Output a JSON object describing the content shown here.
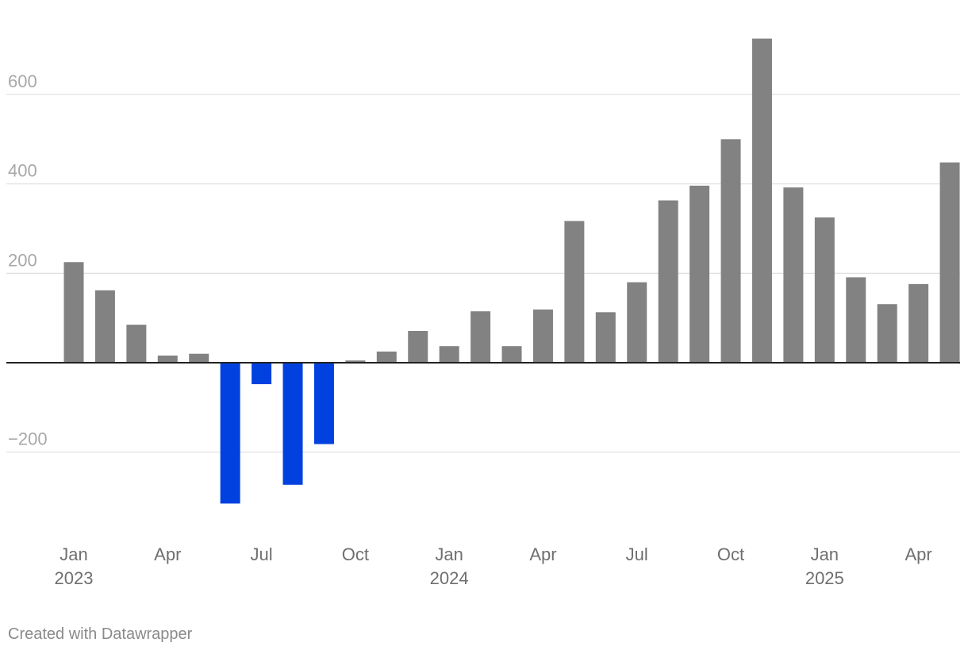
{
  "chart_data": {
    "type": "bar",
    "title": "",
    "xlabel": "",
    "ylabel": "",
    "ylim": [
      -400,
      800
    ],
    "y_ticks": [
      -200,
      200,
      400,
      600
    ],
    "y_tick_labels": [
      "−200",
      "200",
      "400",
      "600"
    ],
    "categories": [
      "Jan 2023",
      "Feb 2023",
      "Mar 2023",
      "Apr 2023",
      "May 2023",
      "Jun 2023",
      "Jul 2023",
      "Aug 2023",
      "Sep 2023",
      "Oct 2023",
      "Nov 2023",
      "Dec 2023",
      "Jan 2024",
      "Feb 2024",
      "Mar 2024",
      "Apr 2024",
      "May 2024",
      "Jun 2024",
      "Jul 2024",
      "Aug 2024",
      "Sep 2024",
      "Oct 2024",
      "Nov 2024",
      "Dec 2024",
      "Jan 2025",
      "Feb 2025",
      "Mar 2025",
      "Apr 2025",
      "May 2025"
    ],
    "values": [
      225,
      162,
      85,
      16,
      20,
      -315,
      -48,
      -273,
      -182,
      5,
      25,
      71,
      37,
      115,
      37,
      119,
      317,
      113,
      180,
      363,
      396,
      500,
      725,
      392,
      325,
      191,
      131,
      176,
      448
    ],
    "x_tick_labels": [
      {
        "index": 0,
        "month": "Jan",
        "year": "2023"
      },
      {
        "index": 3,
        "month": "Apr",
        "year": ""
      },
      {
        "index": 6,
        "month": "Jul",
        "year": ""
      },
      {
        "index": 9,
        "month": "Oct",
        "year": ""
      },
      {
        "index": 12,
        "month": "Jan",
        "year": "2024"
      },
      {
        "index": 15,
        "month": "Apr",
        "year": ""
      },
      {
        "index": 18,
        "month": "Jul",
        "year": ""
      },
      {
        "index": 21,
        "month": "Oct",
        "year": ""
      },
      {
        "index": 24,
        "month": "Jan",
        "year": "2025"
      },
      {
        "index": 27,
        "month": "Apr",
        "year": ""
      }
    ],
    "colors": {
      "positive": "#828282",
      "negative": "#0041e0",
      "gridline": "#e0e0e0",
      "zero_line": "#222222",
      "tick_label": "#6f6f6f",
      "y_tick_label": "#a8a8a8"
    },
    "grid": true,
    "legend": "none"
  },
  "footer": {
    "credit": "Created with Datawrapper"
  }
}
